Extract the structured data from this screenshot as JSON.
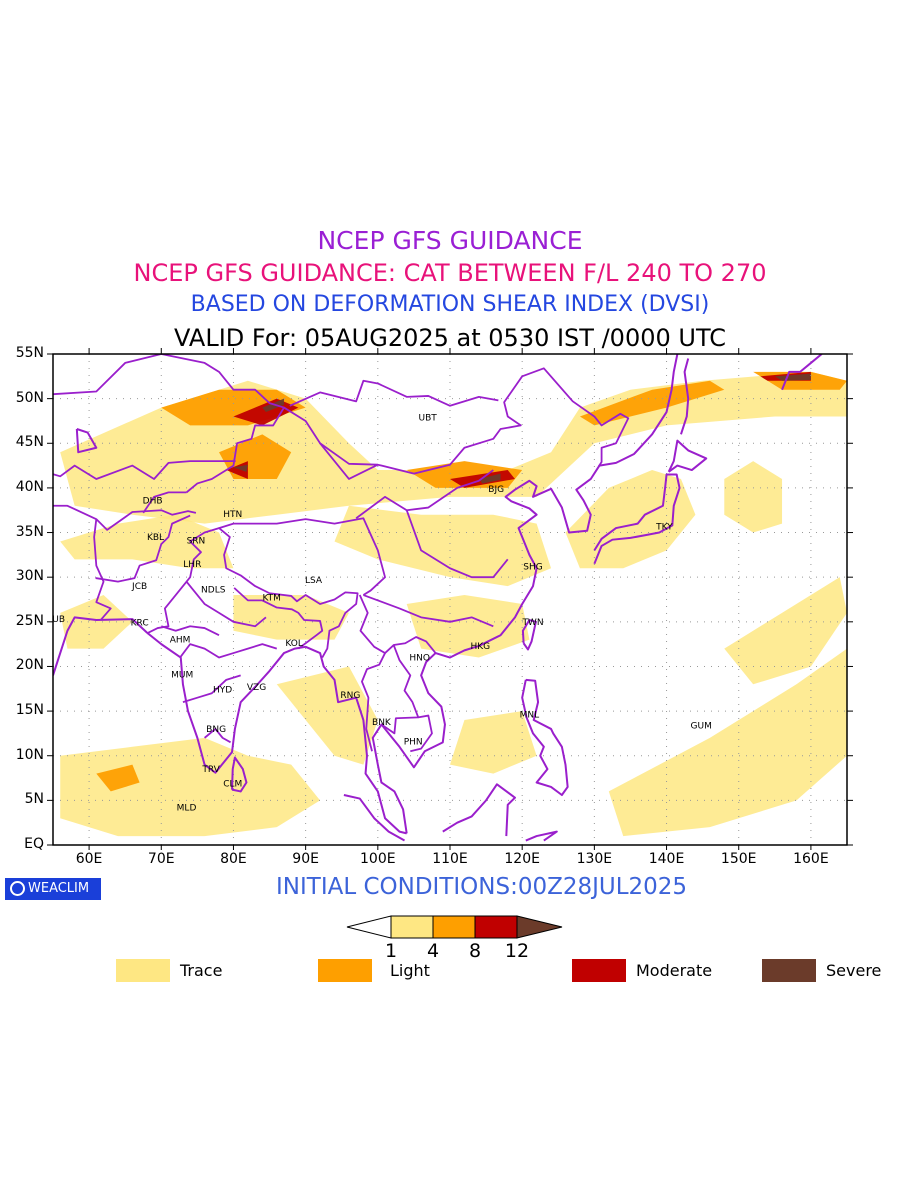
{
  "titles": {
    "line1": "NCEP GFS GUIDANCE",
    "line2": "NCEP GFS GUIDANCE: CAT BETWEEN F/L 240 TO 270",
    "line3": "BASED ON DEFORMATION SHEAR INDEX (DVSI)",
    "line4": "VALID For: 05AUG2025 at 0530 IST /0000 UTC"
  },
  "colors": {
    "line1": "#9a1fd4",
    "line2": "#e8127a",
    "line3": "#2447e0",
    "line4": "#000000",
    "trace": "#fee783",
    "light": "#fe9f00",
    "moderate": "#c00000",
    "severe": "#6b3b2a",
    "boundary": "#9a1fcc"
  },
  "axes": {
    "lat_labels": [
      "55N",
      "50N",
      "45N",
      "40N",
      "35N",
      "30N",
      "25N",
      "20N",
      "15N",
      "10N",
      "5N",
      "EQ"
    ],
    "lon_labels": [
      "60E",
      "70E",
      "80E",
      "90E",
      "100E",
      "110E",
      "120E",
      "130E",
      "140E",
      "150E",
      "160E"
    ],
    "lat_range": [
      0,
      55
    ],
    "lon_range": [
      55,
      165
    ]
  },
  "stations": [
    {
      "code": "UBT",
      "lon": 106.9,
      "lat": 47.9
    },
    {
      "code": "BJG",
      "lon": 116.4,
      "lat": 39.9
    },
    {
      "code": "TKY",
      "lon": 139.7,
      "lat": 35.7
    },
    {
      "code": "DHB",
      "lon": 68.8,
      "lat": 38.6
    },
    {
      "code": "HTN",
      "lon": 79.9,
      "lat": 37.1
    },
    {
      "code": "KBL",
      "lon": 69.2,
      "lat": 34.5
    },
    {
      "code": "SRN",
      "lon": 74.8,
      "lat": 34.1
    },
    {
      "code": "LHR",
      "lon": 74.3,
      "lat": 31.5
    },
    {
      "code": "SHG",
      "lon": 121.5,
      "lat": 31.2
    },
    {
      "code": "JCB",
      "lon": 67.0,
      "lat": 29.0
    },
    {
      "code": "NDLS",
      "lon": 77.2,
      "lat": 28.6
    },
    {
      "code": "KTM",
      "lon": 85.3,
      "lat": 27.7
    },
    {
      "code": "LSA",
      "lon": 91.1,
      "lat": 29.7
    },
    {
      "code": "DUB",
      "lon": 55.3,
      "lat": 25.3
    },
    {
      "code": "KRC",
      "lon": 67.0,
      "lat": 24.9
    },
    {
      "code": "AHM",
      "lon": 72.6,
      "lat": 23.0
    },
    {
      "code": "TWN",
      "lon": 121.5,
      "lat": 25.0
    },
    {
      "code": "KOL",
      "lon": 88.4,
      "lat": 22.6
    },
    {
      "code": "HNO",
      "lon": 105.8,
      "lat": 21.0
    },
    {
      "code": "HKG",
      "lon": 114.2,
      "lat": 22.3
    },
    {
      "code": "MUM",
      "lon": 72.9,
      "lat": 19.1
    },
    {
      "code": "HYD",
      "lon": 78.5,
      "lat": 17.4
    },
    {
      "code": "VZG",
      "lon": 83.2,
      "lat": 17.7
    },
    {
      "code": "RNG",
      "lon": 96.2,
      "lat": 16.8
    },
    {
      "code": "BNK",
      "lon": 100.5,
      "lat": 13.8
    },
    {
      "code": "MNL",
      "lon": 121.0,
      "lat": 14.6
    },
    {
      "code": "GUM",
      "lon": 144.8,
      "lat": 13.4
    },
    {
      "code": "PHN",
      "lon": 104.9,
      "lat": 11.6
    },
    {
      "code": "BNG",
      "lon": 77.6,
      "lat": 13.0
    },
    {
      "code": "TRV",
      "lon": 76.9,
      "lat": 8.5
    },
    {
      "code": "CLM",
      "lon": 79.9,
      "lat": 6.9
    },
    {
      "code": "MLD",
      "lon": 73.5,
      "lat": 4.2
    }
  ],
  "footer": {
    "init": "INITIAL CONDITIONS:00Z28JUL2025",
    "logo": "WEACLIM"
  },
  "colorbar": {
    "ticks": [
      "1",
      "4",
      "8",
      "12"
    ]
  },
  "legend": [
    {
      "label": "Trace",
      "color": "#fee783"
    },
    {
      "label": "Light",
      "color": "#fe9f00"
    },
    {
      "label": "Moderate",
      "color": "#c00000"
    },
    {
      "label": "Severe",
      "color": "#6b3b2a"
    }
  ]
}
